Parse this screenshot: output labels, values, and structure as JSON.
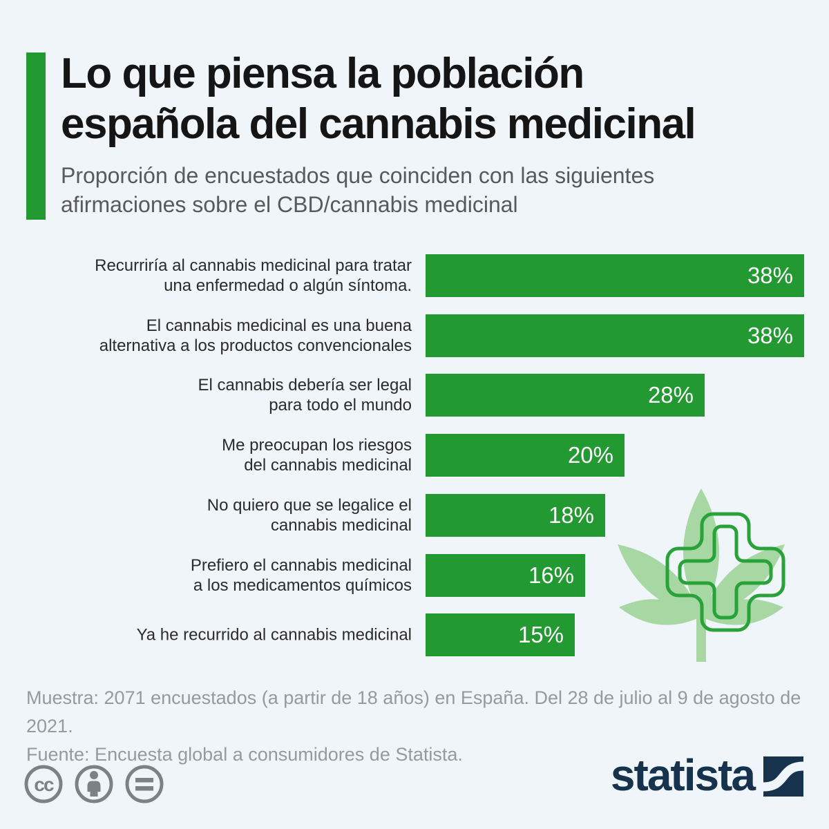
{
  "header": {
    "title": "Lo que piensa la población\nespañola del cannabis medicinal",
    "subtitle": "Proporción de encuestados que coinciden con las siguientes\nafirmaciones sobre el CBD/cannabis medicinal"
  },
  "chart_data": {
    "type": "bar",
    "orientation": "horizontal",
    "unit": "%",
    "xlim": [
      0,
      38
    ],
    "grid": false,
    "categories": [
      "Recurriría al cannabis medicinal para tratar\nuna enfermedad o algún síntoma.",
      "El cannabis medicinal es una buena\nalternativa a los productos convencionales",
      "El cannabis debería ser legal\npara todo el mundo",
      "Me preocupan los riesgos\ndel cannabis medicinal",
      "No quiero que se legalice el\ncannabis medicinal",
      "Prefiero el cannabis medicinal\na los medicamentos químicos",
      "Ya he recurrido al cannabis medicinal"
    ],
    "values": [
      38,
      38,
      28,
      20,
      18,
      16,
      15
    ],
    "value_labels": [
      "38%",
      "38%",
      "28%",
      "20%",
      "18%",
      "16%",
      "15%"
    ],
    "bar_color": "#239a31",
    "value_label_color": "#ffffff"
  },
  "footer": {
    "sample_note": "Muestra: 2071 encuestados (a partir de 18 años) en España. Del 28 de julio al 9 de agosto de 2021.",
    "source_note": "Fuente: Encuesta global a consumidores de Statista."
  },
  "branding": {
    "wordmark": "statista",
    "logo_color": "#16324d"
  },
  "license_icons": [
    "creative-commons-icon",
    "attribution-icon",
    "no-derivatives-icon"
  ],
  "decoration": {
    "name": "cannabis-leaf-with-pharmacy-cross",
    "leaf_color": "#a7d7a2",
    "cross_color": "#29a23a"
  },
  "colors": {
    "background": "#f0f5f9",
    "accent_green": "#239a31",
    "title_text": "#151515",
    "subtitle_text": "#57595c",
    "label_text": "#2b2b2b",
    "footer_text": "#97999c",
    "license_gray": "#7c8184",
    "brand_navy": "#16324d"
  }
}
